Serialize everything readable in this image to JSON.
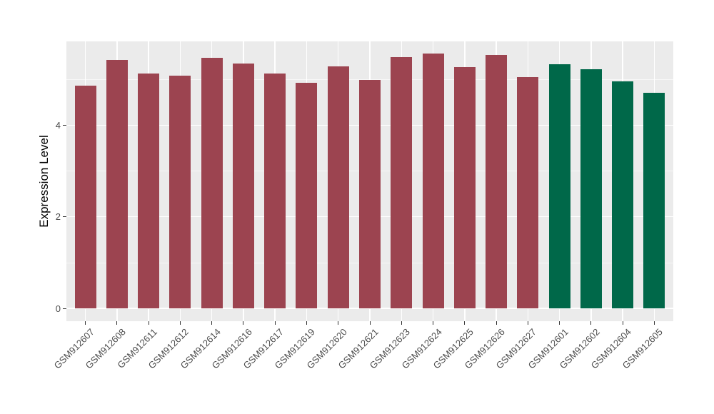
{
  "chart_data": {
    "type": "bar",
    "title": "",
    "xlabel": "",
    "ylabel": "Expression Level",
    "yticks": [
      0,
      2,
      4
    ],
    "ylim": [
      0,
      5.85
    ],
    "grid": true,
    "legend": false,
    "categories": [
      "GSM912607",
      "GSM912608",
      "GSM912611",
      "GSM912612",
      "GSM912614",
      "GSM912616",
      "GSM912617",
      "GSM912619",
      "GSM912620",
      "GSM912621",
      "GSM912623",
      "GSM912624",
      "GSM912625",
      "GSM912626",
      "GSM912627",
      "GSM912601",
      "GSM912602",
      "GSM912604",
      "GSM912605"
    ],
    "values": [
      4.87,
      5.43,
      5.13,
      5.08,
      5.48,
      5.35,
      5.13,
      4.93,
      5.29,
      5.0,
      5.49,
      5.57,
      5.28,
      5.54,
      5.05,
      5.34,
      5.23,
      4.96,
      4.71
    ],
    "groups": [
      0,
      0,
      0,
      0,
      0,
      0,
      0,
      0,
      0,
      0,
      0,
      0,
      0,
      0,
      0,
      1,
      1,
      1,
      1
    ],
    "group_colors": [
      "#9C4450",
      "#006849"
    ],
    "colors": {
      "panel_background": "#EBEBEB",
      "page_background": "#FFFFFF",
      "gridline": "#FFFFFF",
      "axis_text": "#4D4D4D",
      "axis_title": "#000000",
      "tick_mark": "#333333"
    }
  }
}
